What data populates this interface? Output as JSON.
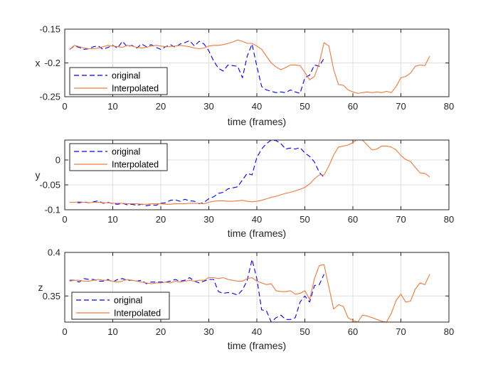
{
  "chart_data": [
    {
      "type": "line",
      "ylabel": "x",
      "xlabel": "time (frames)",
      "xlim": [
        0,
        80
      ],
      "ylim": [
        -0.25,
        -0.15
      ],
      "xticks": [
        "0",
        "10",
        "20",
        "30",
        "40",
        "50",
        "60",
        "70",
        "80"
      ],
      "yticks": [
        "-0.25",
        "-0.2",
        "-0.15"
      ],
      "grid": true,
      "legend_position": "bottom-left",
      "series": [
        {
          "name": "original",
          "color": "#0000ff",
          "style": "dashed",
          "x": [
            1,
            2,
            3,
            4,
            5,
            6,
            7,
            8,
            9,
            10,
            11,
            12,
            13,
            14,
            15,
            16,
            17,
            18,
            19,
            20,
            21,
            22,
            23,
            24,
            25,
            26,
            27,
            28,
            29,
            30,
            31,
            32,
            33,
            34,
            35,
            36,
            37,
            38,
            39,
            40,
            41,
            42,
            43,
            44,
            45,
            46,
            47,
            48,
            49,
            50,
            51,
            52,
            53,
            54
          ],
          "y": [
            -0.18,
            -0.175,
            -0.177,
            -0.18,
            -0.179,
            -0.176,
            -0.175,
            -0.18,
            -0.177,
            -0.174,
            -0.178,
            -0.168,
            -0.176,
            -0.174,
            -0.178,
            -0.172,
            -0.176,
            -0.173,
            -0.177,
            -0.18,
            -0.176,
            -0.173,
            -0.177,
            -0.172,
            -0.17,
            -0.167,
            -0.175,
            -0.168,
            -0.172,
            -0.182,
            -0.197,
            -0.208,
            -0.212,
            -0.203,
            -0.204,
            -0.205,
            -0.222,
            -0.19,
            -0.172,
            -0.205,
            -0.235,
            -0.24,
            -0.242,
            -0.244,
            -0.243,
            -0.244,
            -0.24,
            -0.243,
            -0.245,
            -0.222,
            -0.218,
            -0.203,
            -0.205,
            -0.193
          ]
        },
        {
          "name": "Interpolated",
          "color": "#f07a3a",
          "style": "solid",
          "x": [
            1,
            2,
            3,
            4,
            5,
            6,
            7,
            8,
            9,
            10,
            11,
            12,
            13,
            14,
            15,
            16,
            17,
            18,
            19,
            20,
            21,
            22,
            23,
            24,
            25,
            26,
            27,
            28,
            29,
            30,
            31,
            32,
            33,
            34,
            35,
            36,
            37,
            38,
            39,
            40,
            41,
            42,
            43,
            44,
            45,
            46,
            47,
            48,
            49,
            50,
            51,
            52,
            53,
            54,
            55,
            56,
            57,
            58,
            59,
            60,
            61,
            62,
            63,
            64,
            65,
            66,
            67,
            68,
            69,
            70,
            71,
            72,
            73,
            74,
            75,
            76
          ],
          "y": [
            -0.18,
            -0.174,
            -0.176,
            -0.178,
            -0.179,
            -0.179,
            -0.178,
            -0.176,
            -0.174,
            -0.175,
            -0.176,
            -0.177,
            -0.174,
            -0.175,
            -0.177,
            -0.178,
            -0.177,
            -0.175,
            -0.174,
            -0.175,
            -0.176,
            -0.176,
            -0.175,
            -0.174,
            -0.175,
            -0.176,
            -0.178,
            -0.179,
            -0.178,
            -0.175,
            -0.174,
            -0.174,
            -0.173,
            -0.171,
            -0.169,
            -0.166,
            -0.168,
            -0.171,
            -0.171,
            -0.175,
            -0.18,
            -0.19,
            -0.2,
            -0.206,
            -0.21,
            -0.207,
            -0.203,
            -0.203,
            -0.204,
            -0.214,
            -0.225,
            -0.22,
            -0.2,
            -0.17,
            -0.175,
            -0.21,
            -0.232,
            -0.233,
            -0.24,
            -0.243,
            -0.245,
            -0.244,
            -0.243,
            -0.244,
            -0.243,
            -0.244,
            -0.242,
            -0.244,
            -0.235,
            -0.222,
            -0.22,
            -0.215,
            -0.205,
            -0.203,
            -0.204,
            -0.19
          ]
        }
      ]
    },
    {
      "type": "line",
      "ylabel": "y",
      "xlabel": "time (frames)",
      "xlim": [
        0,
        80
      ],
      "ylim": [
        -0.1,
        0.04
      ],
      "xticks": [
        "0",
        "10",
        "20",
        "30",
        "40",
        "50",
        "60",
        "70",
        "80"
      ],
      "yticks": [
        "-0.1",
        "-0.05",
        "0"
      ],
      "grid": true,
      "legend_position": "top-left",
      "series": [
        {
          "name": "original",
          "color": "#0000ff",
          "style": "dashed",
          "x": [
            1,
            2,
            3,
            4,
            5,
            6,
            7,
            8,
            9,
            10,
            11,
            12,
            13,
            14,
            15,
            16,
            17,
            18,
            19,
            20,
            21,
            22,
            23,
            24,
            25,
            26,
            27,
            28,
            29,
            30,
            31,
            32,
            33,
            34,
            35,
            36,
            37,
            38,
            39,
            40,
            41,
            42,
            43,
            44,
            45,
            46,
            47,
            48,
            49,
            50,
            51,
            52,
            53,
            54
          ],
          "y": [
            -0.085,
            -0.085,
            -0.086,
            -0.084,
            -0.086,
            -0.084,
            -0.082,
            -0.087,
            -0.085,
            -0.088,
            -0.089,
            -0.087,
            -0.09,
            -0.089,
            -0.091,
            -0.089,
            -0.092,
            -0.09,
            -0.091,
            -0.087,
            -0.086,
            -0.081,
            -0.08,
            -0.083,
            -0.079,
            -0.082,
            -0.083,
            -0.088,
            -0.085,
            -0.078,
            -0.074,
            -0.067,
            -0.065,
            -0.058,
            -0.056,
            -0.054,
            -0.04,
            -0.027,
            -0.03,
            0.005,
            0.022,
            0.033,
            0.04,
            0.039,
            0.033,
            0.022,
            0.024,
            0.022,
            0.025,
            0.014,
            0.007,
            -0.004,
            -0.025,
            -0.035
          ]
        },
        {
          "name": "Interpolated",
          "color": "#f07a3a",
          "style": "solid",
          "x": [
            1,
            2,
            3,
            4,
            5,
            6,
            7,
            8,
            9,
            10,
            11,
            12,
            13,
            14,
            15,
            16,
            17,
            18,
            19,
            20,
            21,
            22,
            23,
            24,
            25,
            26,
            27,
            28,
            29,
            30,
            31,
            32,
            33,
            34,
            35,
            36,
            37,
            38,
            39,
            40,
            41,
            42,
            43,
            44,
            45,
            46,
            47,
            48,
            49,
            50,
            51,
            52,
            53,
            54,
            55,
            56,
            57,
            58,
            59,
            60,
            61,
            62,
            63,
            64,
            65,
            66,
            67,
            68,
            69,
            70,
            71,
            72,
            73,
            74,
            75,
            76
          ],
          "y": [
            -0.085,
            -0.085,
            -0.084,
            -0.085,
            -0.086,
            -0.085,
            -0.085,
            -0.086,
            -0.086,
            -0.087,
            -0.087,
            -0.087,
            -0.088,
            -0.088,
            -0.088,
            -0.089,
            -0.089,
            -0.088,
            -0.088,
            -0.088,
            -0.089,
            -0.089,
            -0.088,
            -0.088,
            -0.088,
            -0.087,
            -0.087,
            -0.087,
            -0.088,
            -0.085,
            -0.083,
            -0.082,
            -0.082,
            -0.083,
            -0.083,
            -0.082,
            -0.081,
            -0.083,
            -0.084,
            -0.083,
            -0.081,
            -0.078,
            -0.075,
            -0.073,
            -0.07,
            -0.067,
            -0.065,
            -0.062,
            -0.059,
            -0.055,
            -0.048,
            -0.038,
            -0.03,
            -0.03,
            -0.012,
            0.01,
            0.026,
            0.028,
            0.03,
            0.035,
            0.042,
            0.04,
            0.03,
            0.02,
            0.022,
            0.028,
            0.028,
            0.026,
            0.02,
            0.009,
            0.001,
            -0.003,
            -0.015,
            -0.026,
            -0.027,
            -0.034
          ]
        }
      ]
    },
    {
      "type": "line",
      "ylabel": "z",
      "xlabel": "time (frames)",
      "xlim": [
        0,
        80
      ],
      "ylim": [
        0.32,
        0.4
      ],
      "xticks": [
        "0",
        "10",
        "20",
        "30",
        "40",
        "50",
        "60",
        "70",
        "80"
      ],
      "yticks": [
        "0.35",
        "0.4"
      ],
      "grid": true,
      "legend_position": "bottom-left",
      "series": [
        {
          "name": "original",
          "color": "#0000ff",
          "style": "dashed",
          "x": [
            1,
            2,
            3,
            4,
            5,
            6,
            7,
            8,
            9,
            10,
            11,
            12,
            13,
            14,
            15,
            16,
            17,
            18,
            19,
            20,
            21,
            22,
            23,
            24,
            25,
            26,
            27,
            28,
            29,
            30,
            31,
            32,
            33,
            34,
            35,
            36,
            37,
            38,
            39,
            40,
            41,
            42,
            43,
            44,
            45,
            46,
            47,
            48,
            49,
            50,
            51,
            52,
            53,
            54
          ],
          "y": [
            0.368,
            0.368,
            0.366,
            0.37,
            0.369,
            0.369,
            0.367,
            0.367,
            0.369,
            0.366,
            0.369,
            0.37,
            0.368,
            0.368,
            0.367,
            0.368,
            0.364,
            0.366,
            0.366,
            0.366,
            0.366,
            0.367,
            0.369,
            0.367,
            0.368,
            0.371,
            0.367,
            0.365,
            0.367,
            0.369,
            0.369,
            0.355,
            0.353,
            0.354,
            0.353,
            0.351,
            0.357,
            0.368,
            0.392,
            0.37,
            0.334,
            0.333,
            0.32,
            0.325,
            0.328,
            0.323,
            0.323,
            0.325,
            0.343,
            0.35,
            0.343,
            0.362,
            0.363,
            0.375
          ]
        },
        {
          "name": "Interpolated",
          "color": "#f07a3a",
          "style": "solid",
          "x": [
            1,
            2,
            3,
            4,
            5,
            6,
            7,
            8,
            9,
            10,
            11,
            12,
            13,
            14,
            15,
            16,
            17,
            18,
            19,
            20,
            21,
            22,
            23,
            24,
            25,
            26,
            27,
            28,
            29,
            30,
            31,
            32,
            33,
            34,
            35,
            36,
            37,
            38,
            39,
            40,
            41,
            42,
            43,
            44,
            45,
            46,
            47,
            48,
            49,
            50,
            51,
            52,
            53,
            54,
            55,
            56,
            57,
            58,
            59,
            60,
            61,
            62,
            63,
            64,
            65,
            66,
            67,
            68,
            69,
            70,
            71,
            72,
            73,
            74,
            75,
            76
          ],
          "y": [
            0.367,
            0.368,
            0.368,
            0.367,
            0.367,
            0.368,
            0.369,
            0.368,
            0.368,
            0.367,
            0.366,
            0.367,
            0.369,
            0.368,
            0.367,
            0.366,
            0.365,
            0.364,
            0.365,
            0.365,
            0.366,
            0.365,
            0.367,
            0.366,
            0.367,
            0.368,
            0.367,
            0.368,
            0.368,
            0.371,
            0.371,
            0.37,
            0.371,
            0.369,
            0.368,
            0.367,
            0.367,
            0.37,
            0.371,
            0.367,
            0.365,
            0.363,
            0.364,
            0.356,
            0.355,
            0.355,
            0.356,
            0.352,
            0.353,
            0.356,
            0.346,
            0.37,
            0.385,
            0.386,
            0.36,
            0.335,
            0.34,
            0.338,
            0.325,
            0.322,
            0.32,
            0.328,
            0.327,
            0.325,
            0.323,
            0.321,
            0.32,
            0.33,
            0.345,
            0.352,
            0.343,
            0.344,
            0.358,
            0.365,
            0.363,
            0.375
          ]
        }
      ]
    }
  ]
}
